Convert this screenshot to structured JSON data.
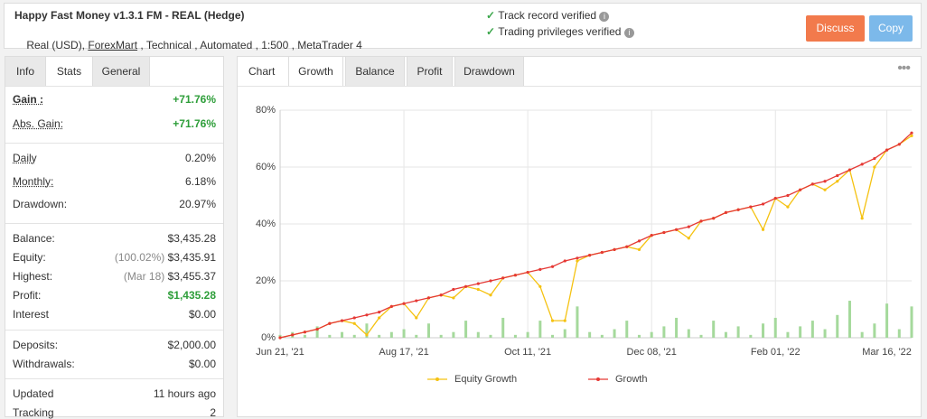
{
  "header": {
    "title": "Happy Fast Money v1.3.1 FM - REAL (Hedge)",
    "subtitle": [
      "Real (USD), ",
      "ForexMart",
      " , Technical , Automated , 1:500 , MetaTrader 4"
    ],
    "verifications": [
      "Track record verified",
      "Trading privileges verified"
    ],
    "buttons": [
      "Discuss",
      "Copy"
    ]
  },
  "stats": {
    "tabs": [
      "Info",
      "Stats",
      "General"
    ],
    "active_tab": 1,
    "groups": [
      {
        "rows": [
          {
            "label": "Gain :",
            "value": "+71.76%",
            "underline": true,
            "bold": true,
            "value_color": "#2e9e3a"
          },
          {
            "label": "Abs. Gain:",
            "value": "+71.76%",
            "underline": true,
            "value_color": "#2e9e3a"
          }
        ]
      },
      {
        "rows": [
          {
            "label": "Daily",
            "value": "0.20%",
            "underline": true
          },
          {
            "label": "Monthly:",
            "value": "6.18%",
            "underline": true
          },
          {
            "label": "Drawdown:",
            "value": "20.97%"
          }
        ]
      },
      {
        "rows": [
          {
            "label": "Balance:",
            "value": "$3,435.28"
          },
          {
            "label": "Equity:",
            "note": "(100.02%)",
            "value": "$3,435.91"
          },
          {
            "label": "Highest:",
            "note": "(Mar 18)",
            "value": "$3,455.37"
          },
          {
            "label": "Profit:",
            "value": "$1,435.28",
            "value_color": "#2e9e3a"
          },
          {
            "label": "Interest",
            "value": "$0.00"
          }
        ]
      },
      {
        "rows": [
          {
            "label": "Deposits:",
            "value": "$2,000.00"
          },
          {
            "label": "Withdrawals:",
            "value": "$0.00"
          }
        ]
      },
      {
        "rows": [
          {
            "label": "Updated",
            "value": "11 hours ago"
          },
          {
            "label": "Tracking",
            "value": "2"
          }
        ]
      }
    ]
  },
  "chart_tabs": {
    "label": "Chart",
    "tabs": [
      "Growth",
      "Balance",
      "Profit",
      "Drawdown"
    ],
    "active_tab": 0
  },
  "chart_data": {
    "type": "line",
    "categories": [
      "Jun 21, '21",
      null,
      null,
      null,
      null,
      null,
      null,
      null,
      null,
      null,
      "Aug 17, '21",
      null,
      null,
      null,
      null,
      null,
      null,
      null,
      null,
      null,
      "Oct 11, '21",
      null,
      null,
      null,
      null,
      null,
      null,
      null,
      null,
      null,
      "Dec 08, '21",
      null,
      null,
      null,
      null,
      null,
      null,
      null,
      null,
      null,
      "Feb 01, '22",
      null,
      null,
      null,
      null,
      null,
      null,
      null,
      null,
      "Mar 16, '22",
      null,
      null
    ],
    "series": [
      {
        "name": "Equity Growth",
        "color": "#f5c211",
        "values": [
          0,
          1,
          2,
          3,
          5,
          6,
          5,
          1,
          7,
          11,
          12,
          7,
          14,
          15,
          14,
          18,
          17,
          15,
          21,
          22,
          23,
          18,
          6,
          6,
          27,
          29,
          30,
          31,
          32,
          31,
          36,
          37,
          38,
          35,
          41,
          42,
          44,
          45,
          46,
          38,
          49,
          46,
          52,
          54,
          52,
          55,
          59,
          42,
          60,
          66,
          68,
          71
        ]
      },
      {
        "name": "Growth",
        "color": "#e53935",
        "values": [
          0,
          1,
          2,
          3,
          5,
          6,
          7,
          8,
          9,
          11,
          12,
          13,
          14,
          15,
          17,
          18,
          19,
          20,
          21,
          22,
          23,
          24,
          25,
          27,
          28,
          29,
          30,
          31,
          32,
          34,
          36,
          37,
          38,
          39,
          41,
          42,
          44,
          45,
          46,
          47,
          49,
          50,
          52,
          54,
          55,
          57,
          59,
          61,
          63,
          66,
          68,
          72
        ]
      }
    ],
    "bar_values": [
      1,
      2,
      1,
      4,
      1,
      2,
      1,
      5,
      1,
      2,
      3,
      1,
      5,
      1,
      2,
      6,
      2,
      1,
      7,
      1,
      2,
      6,
      1,
      3,
      11,
      2,
      1,
      3,
      6,
      1,
      2,
      4,
      7,
      3,
      1,
      6,
      2,
      4,
      1,
      5,
      7,
      2,
      4,
      6,
      3,
      8,
      13,
      2,
      5,
      12,
      3,
      11
    ],
    "bar_color": "#a5d99c",
    "ylim": [
      0,
      80
    ],
    "yticks": [
      {
        "value": 0,
        "label": "0%"
      },
      {
        "value": 20,
        "label": "20%"
      },
      {
        "value": 40,
        "label": "40%"
      },
      {
        "value": 60,
        "label": "60%"
      },
      {
        "value": 80,
        "label": "80%"
      }
    ],
    "grid": true
  }
}
